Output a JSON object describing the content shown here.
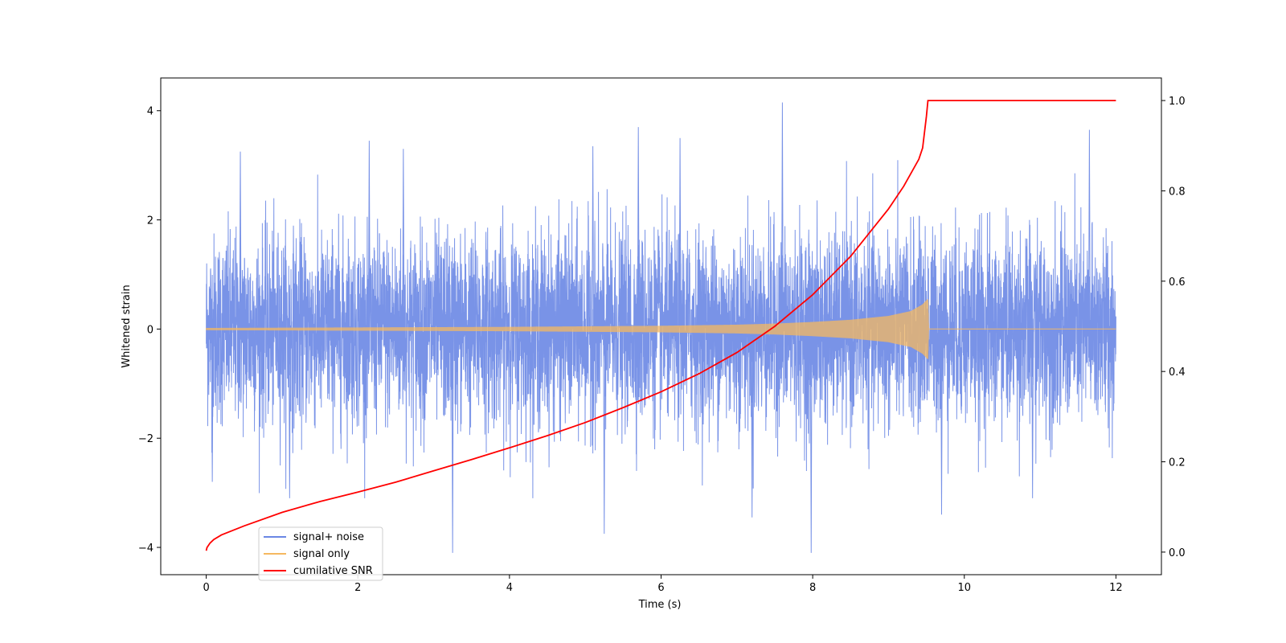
{
  "chart_data": {
    "type": "line",
    "xlabel": "Time (s)",
    "ylabel": "Whitened strain",
    "ylabel_right": "",
    "xlim": [
      -0.6,
      12.6
    ],
    "ylim": [
      -4.5,
      4.6
    ],
    "ylim_right": [
      -0.05,
      1.05
    ],
    "x_ticks": [
      0,
      2,
      4,
      6,
      8,
      10,
      12
    ],
    "y_ticks": [
      -4,
      -2,
      0,
      2,
      4
    ],
    "y_ticks_right": [
      0.0,
      0.2,
      0.4,
      0.6,
      0.8,
      1.0
    ],
    "x_tick_labels": [
      "0",
      "2",
      "4",
      "6",
      "8",
      "10",
      "12"
    ],
    "y_tick_labels": [
      "−4",
      "−2",
      "0",
      "2",
      "4"
    ],
    "y_tick_labels_right": [
      "0.0",
      "0.2",
      "0.4",
      "0.6",
      "0.8",
      "1.0"
    ],
    "grid": false,
    "legend_position": "lower-left",
    "series": [
      {
        "name": "signal+ noise",
        "axis": "left",
        "color": "#6a87e4",
        "description_range": [
          0,
          12
        ],
        "typical_band": [
          -1.9,
          1.9
        ],
        "max_spikes": [
          [
            0.45,
            3.25
          ],
          [
            2.15,
            3.45
          ],
          [
            2.6,
            3.3
          ],
          [
            5.1,
            3.35
          ],
          [
            5.7,
            3.7
          ],
          [
            6.25,
            3.5
          ],
          [
            7.6,
            4.15
          ],
          [
            11.65,
            3.65
          ]
        ],
        "min_spikes": [
          [
            0.08,
            -2.8
          ],
          [
            1.1,
            -3.1
          ],
          [
            3.25,
            -4.1
          ],
          [
            5.25,
            -3.75
          ],
          [
            7.2,
            -3.45
          ],
          [
            7.98,
            -4.1
          ],
          [
            9.7,
            -3.4
          ],
          [
            10.9,
            -3.1
          ]
        ]
      },
      {
        "name": "signal only",
        "axis": "left",
        "color": "#f5b860",
        "envelope": [
          [
            0,
            0.02
          ],
          [
            1,
            0.025
          ],
          [
            2,
            0.03
          ],
          [
            3,
            0.035
          ],
          [
            4,
            0.04
          ],
          [
            5,
            0.05
          ],
          [
            6,
            0.06
          ],
          [
            7,
            0.08
          ],
          [
            7.5,
            0.1
          ],
          [
            8,
            0.13
          ],
          [
            8.5,
            0.17
          ],
          [
            9,
            0.24
          ],
          [
            9.3,
            0.33
          ],
          [
            9.45,
            0.45
          ],
          [
            9.52,
            0.55
          ],
          [
            9.53,
            0.0
          ],
          [
            12,
            0.0
          ]
        ]
      },
      {
        "name": "cumilative SNR",
        "axis": "right",
        "color": "#ff0000",
        "x": [
          0,
          0.01,
          0.05,
          0.1,
          0.2,
          0.5,
          1,
          1.5,
          2,
          2.5,
          3,
          3.5,
          4,
          4.5,
          5,
          5.5,
          6,
          6.5,
          7,
          7.5,
          8,
          8.5,
          9,
          9.2,
          9.4,
          9.45,
          9.5,
          9.52,
          9.53,
          10,
          11,
          12
        ],
        "values": [
          0.003,
          0.01,
          0.02,
          0.028,
          0.038,
          0.058,
          0.088,
          0.112,
          0.133,
          0.155,
          0.18,
          0.205,
          0.231,
          0.258,
          0.287,
          0.32,
          0.355,
          0.395,
          0.442,
          0.5,
          0.57,
          0.655,
          0.76,
          0.81,
          0.87,
          0.895,
          0.965,
          1.0,
          1.0,
          1.0,
          1.0,
          1.0
        ]
      }
    ]
  }
}
